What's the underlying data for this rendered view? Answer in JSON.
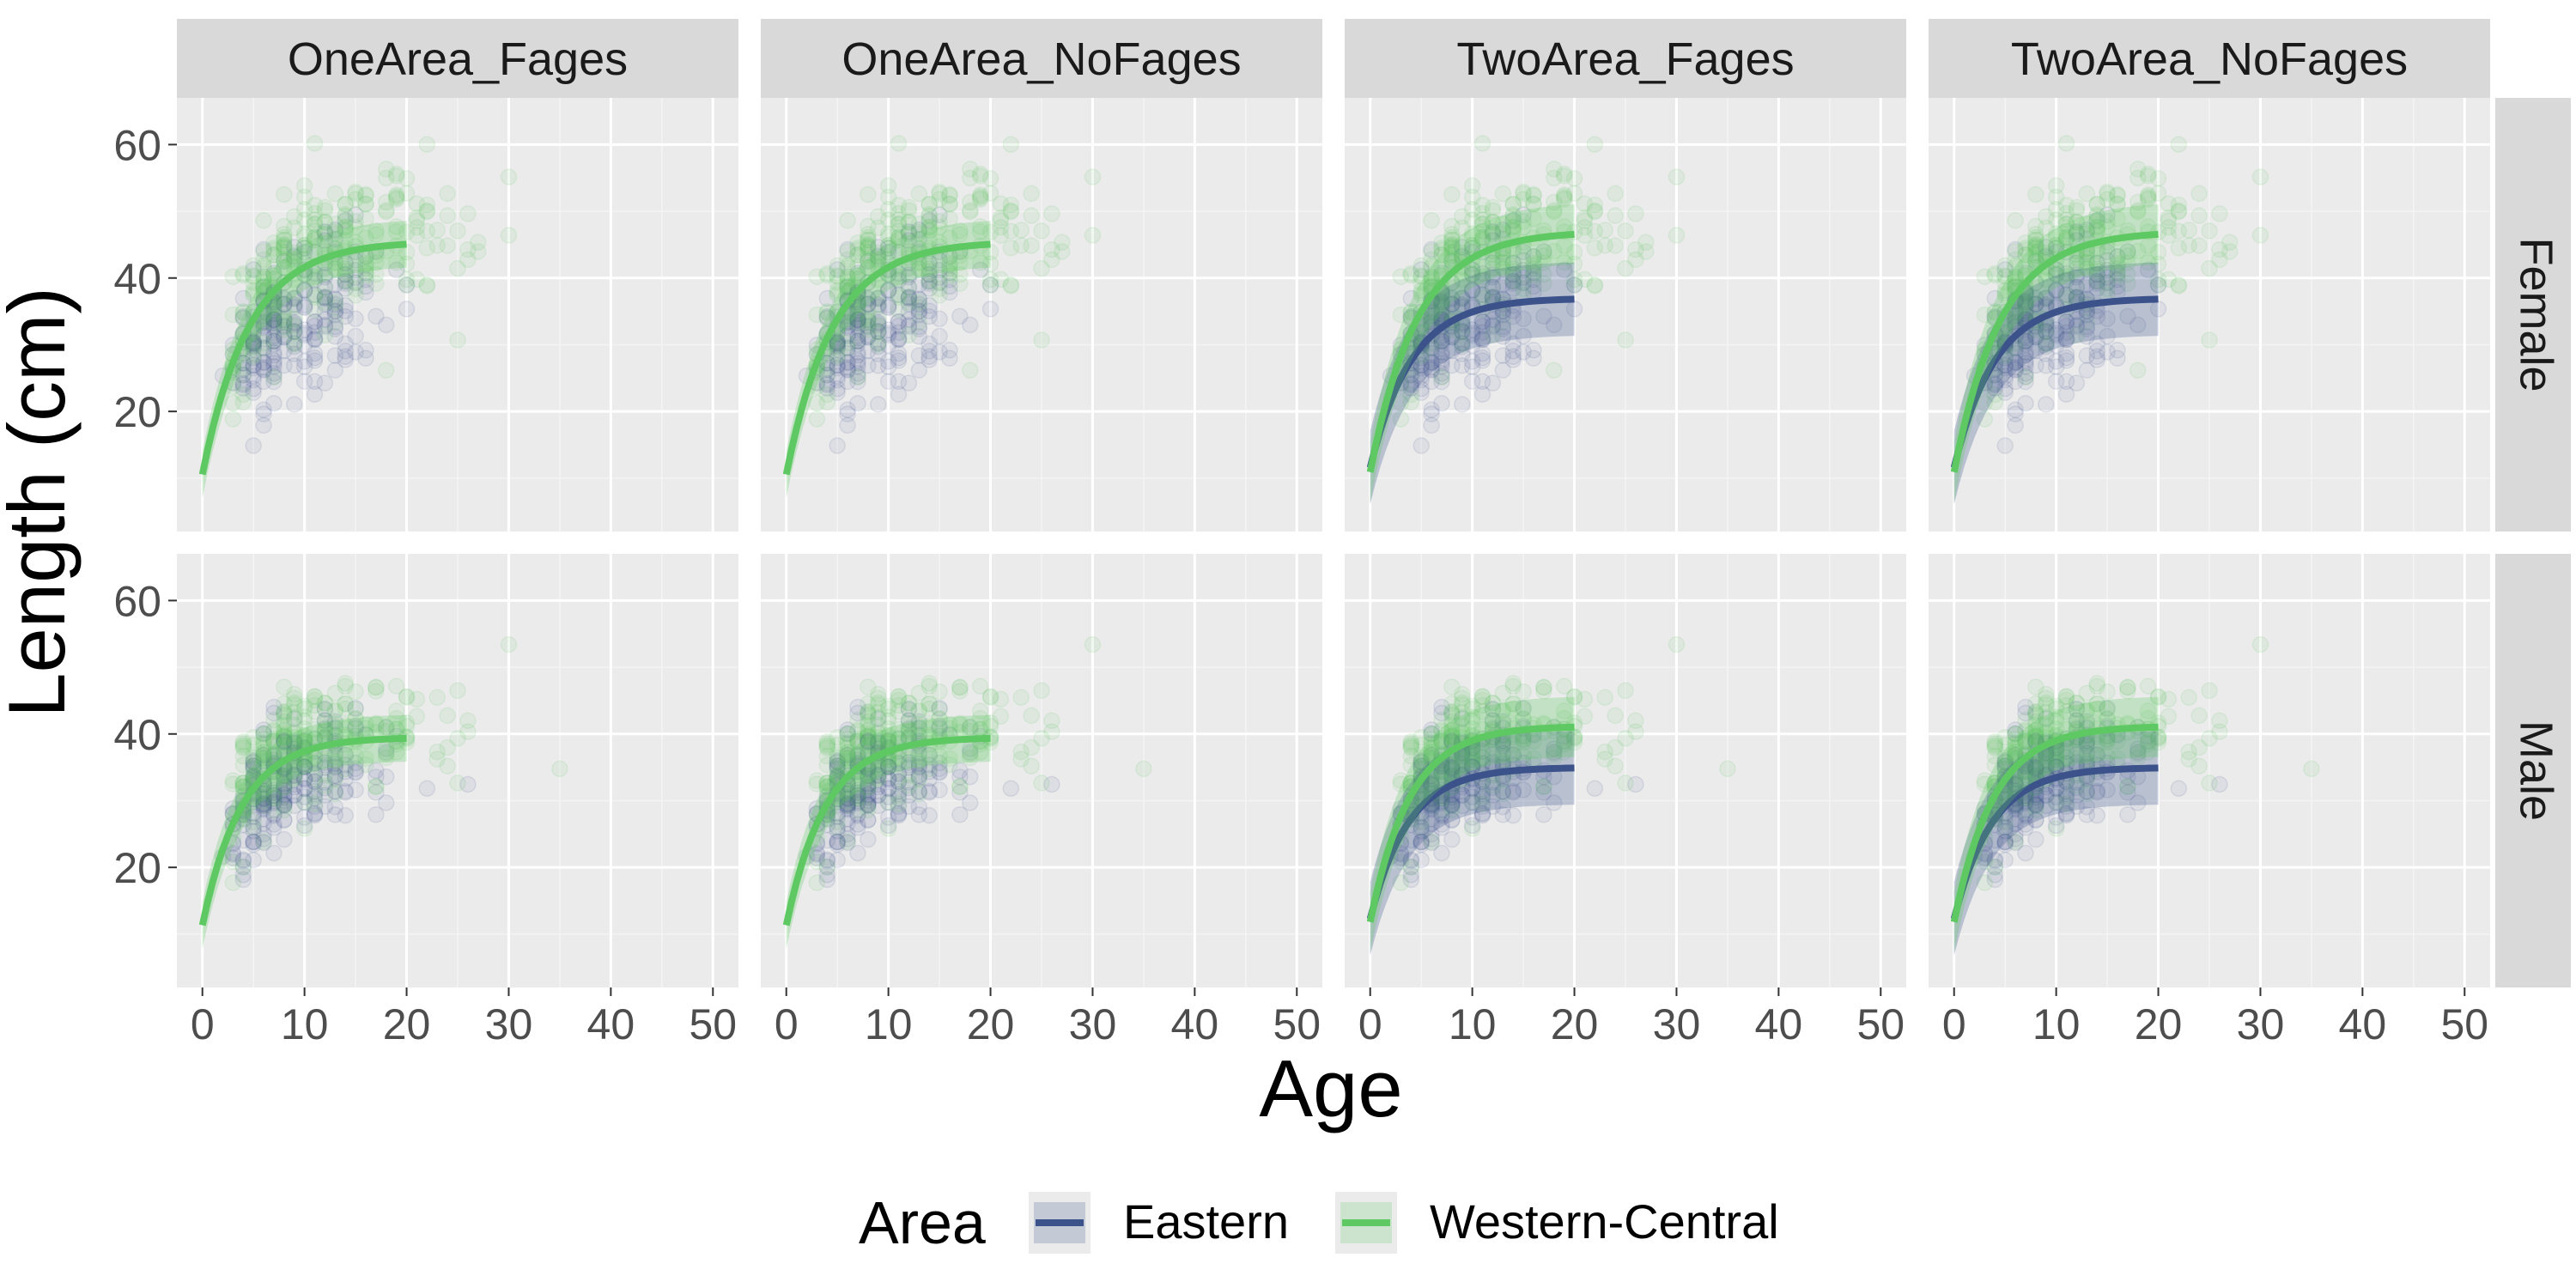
{
  "chart_data": {
    "type": "scatter",
    "title": "",
    "xlabel": "Age",
    "ylabel": "Length (cm)",
    "xlim": [
      -2.5,
      52.5
    ],
    "ylim": [
      2,
      67
    ],
    "x_ticks": [
      0,
      10,
      20,
      30,
      40,
      50
    ],
    "y_ticks": [
      20,
      40,
      60
    ],
    "grid": true,
    "legend_position": "bottom",
    "legend_title": "Area",
    "columns": [
      "OneArea_Fages",
      "OneArea_NoFages",
      "TwoArea_Fages",
      "TwoArea_NoFages"
    ],
    "rows": [
      "Female",
      "Male"
    ],
    "series": [
      {
        "name": "Eastern",
        "color": "#3b528b"
      },
      {
        "name": "Western-Central",
        "color": "#5ec962"
      }
    ],
    "fitted_curves": {
      "Female": {
        "one_area": {
          "linf": 45.5,
          "k": 0.22,
          "t0": -1.2
        },
        "two_area": {
          "Western-Central": {
            "linf": 47.0,
            "k": 0.22,
            "t0": -1.2
          },
          "Eastern": {
            "linf": 37.0,
            "k": 0.25,
            "t0": -1.5
          }
        },
        "age_range": [
          0,
          20
        ]
      },
      "Male": {
        "one_area": {
          "linf": 39.5,
          "k": 0.26,
          "t0": -1.3
        },
        "two_area": {
          "Western-Central": {
            "linf": 41.2,
            "k": 0.26,
            "t0": -1.3
          },
          "Eastern": {
            "linf": 35.0,
            "k": 0.27,
            "t0": -1.6
          }
        },
        "age_range": [
          0,
          20
        ]
      }
    }
  }
}
